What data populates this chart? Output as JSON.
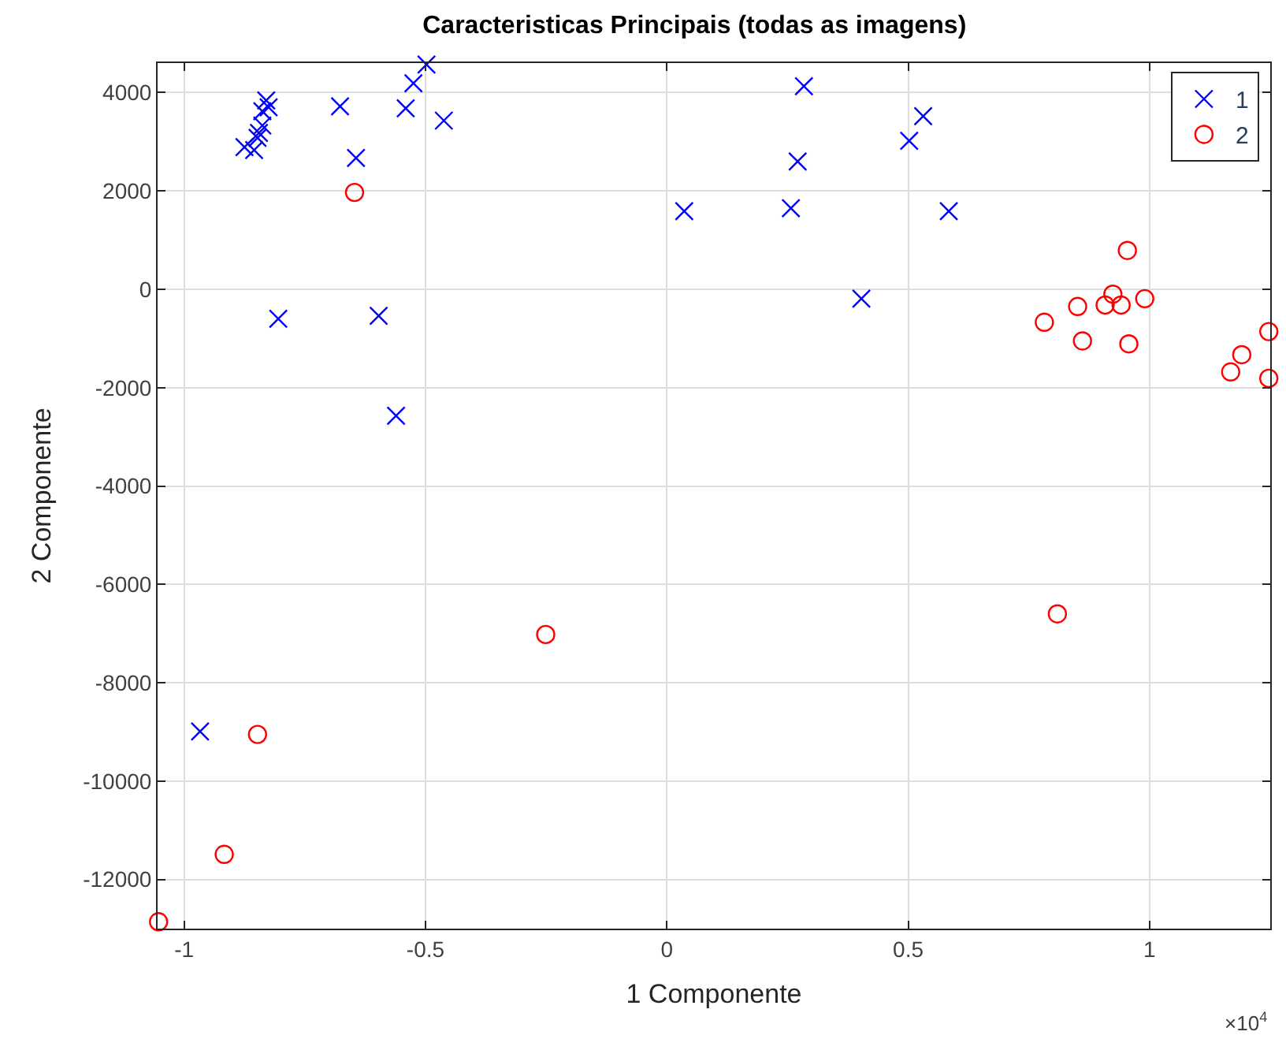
{
  "chart_data": {
    "type": "scatter",
    "title": "Caracteristicas Principais (todas as imagens)",
    "xlabel": "1 Componente",
    "ylabel": "2 Componente",
    "annotations": [
      "×10$^{4}$"
    ],
    "series": [
      {
        "name": "1",
        "color": "#0000ff",
        "marker": "cross",
        "x": [
          -0.83,
          -0.825,
          -0.838,
          -0.838,
          -0.845,
          -0.848,
          -0.875,
          -0.855,
          -0.805,
          -0.677,
          -0.644,
          -0.597,
          -0.541,
          -0.525,
          -0.498,
          -0.462,
          -0.561,
          -0.967,
          0.036,
          0.257,
          0.271,
          0.284,
          0.403,
          0.502,
          0.531,
          0.584
        ],
        "values": [
          3840,
          3700,
          3620,
          3330,
          3180,
          3080,
          2890,
          2830,
          -600,
          3720,
          2670,
          -540,
          3680,
          4190,
          4570,
          3430,
          -2570,
          -8990,
          1590,
          1650,
          2600,
          4130,
          -190,
          3020,
          3520,
          1590
        ]
      },
      {
        "name": "2",
        "color": "#ff0000",
        "marker": "circle",
        "x": [
          -0.647,
          0.782,
          0.851,
          0.861,
          0.908,
          0.924,
          0.941,
          0.954,
          0.957,
          0.99,
          1.168,
          1.191,
          1.247,
          1.247,
          -0.251,
          0.809,
          -0.848,
          -0.917,
          -1.053
        ],
        "values": [
          1970,
          -670,
          -350,
          -1050,
          -320,
          -100,
          -320,
          790,
          -1110,
          -190,
          -1680,
          -1330,
          -860,
          -1810,
          -7020,
          -6600,
          -9050,
          -11490,
          -12860
        ]
      }
    ],
    "xlim": [
      -1.055,
      1.25
    ],
    "ylim": [
      -13000,
      4600
    ],
    "xticks": [
      -1,
      -0.5,
      0,
      0.5,
      1
    ],
    "yticks": [
      -12000,
      -10000,
      -8000,
      -6000,
      -4000,
      -2000,
      0,
      2000,
      4000
    ],
    "grid": true,
    "legend": "top right"
  }
}
